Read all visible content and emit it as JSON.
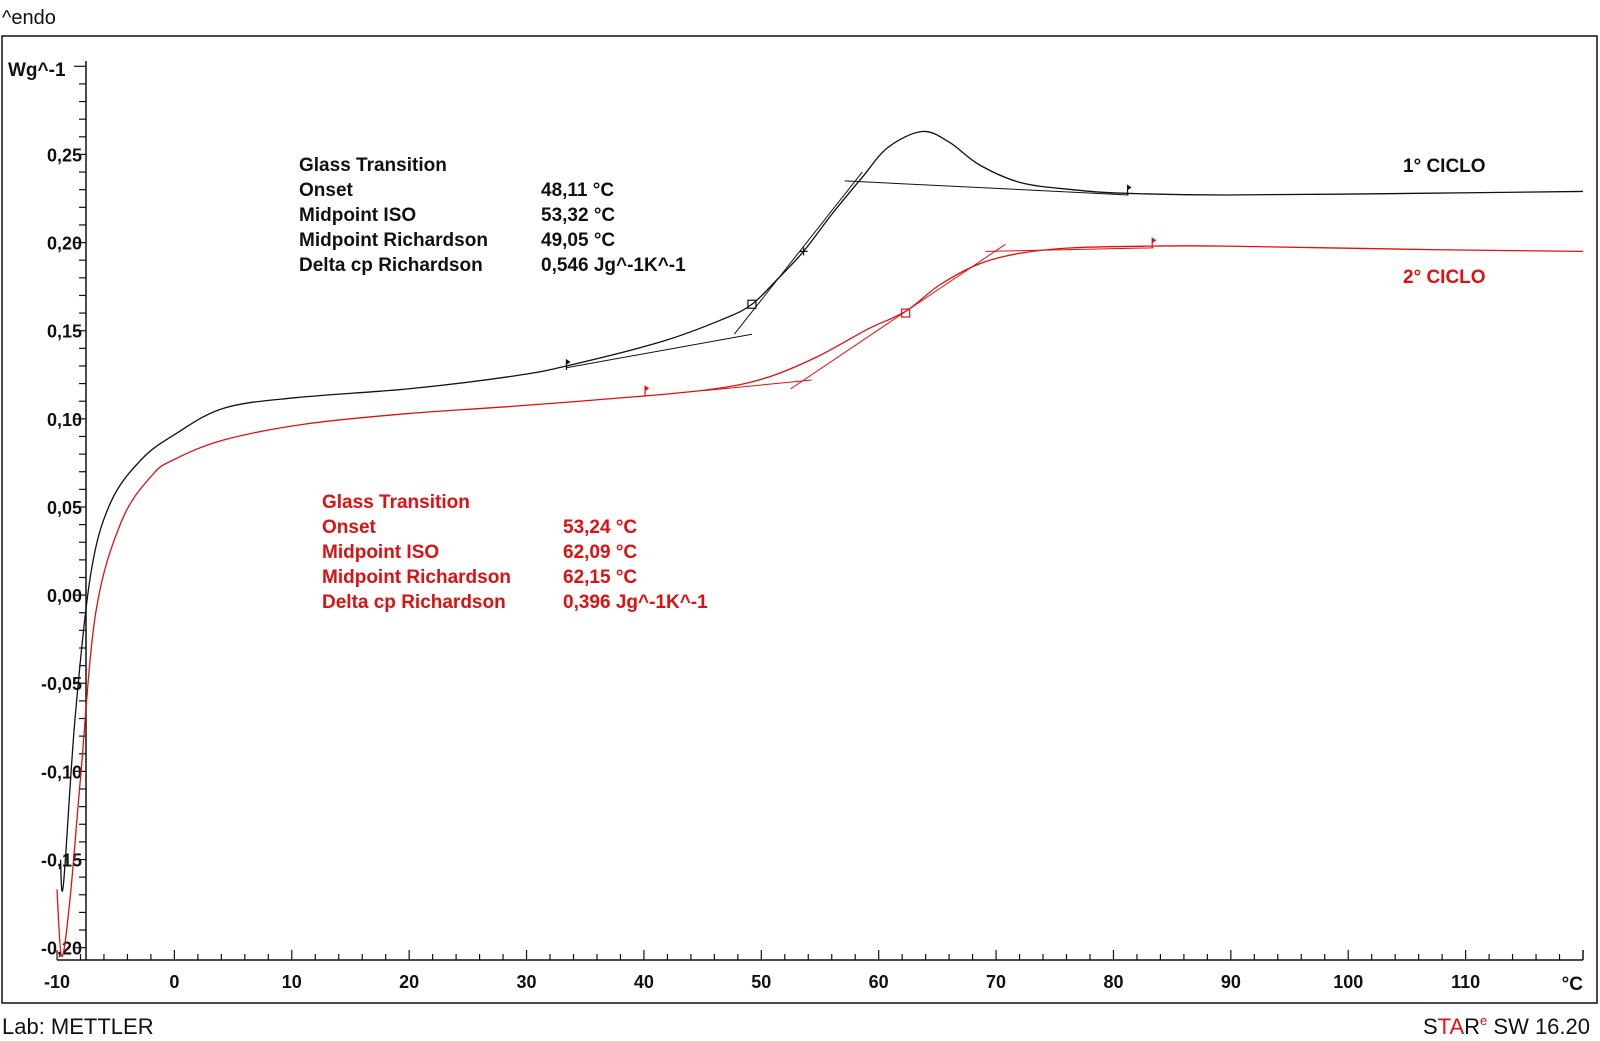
{
  "header": {
    "endo_label": "^endo"
  },
  "footer": {
    "lab": "Lab: METTLER",
    "software_prefix_s": "S",
    "software_ta": "TA",
    "software_r": "R",
    "software_e": "e",
    "software_rest": " SW 16.20"
  },
  "colors": {
    "cycle1": "#111111",
    "cycle2": "#dd1111"
  },
  "chart_data": {
    "type": "line",
    "title": "",
    "xlabel": "°C",
    "ylabel": "Wg^-1",
    "xlim": [
      -10,
      120
    ],
    "ylim": [
      -0.207,
      0.303
    ],
    "x_ticks": [
      -10,
      0,
      10,
      20,
      30,
      40,
      50,
      60,
      70,
      80,
      90,
      100,
      110
    ],
    "x_tick_labels": [
      "-10",
      "0",
      "10",
      "20",
      "30",
      "40",
      "50",
      "60",
      "70",
      "80",
      "90",
      "100",
      "110"
    ],
    "y_ticks": [
      0.25,
      0.2,
      0.15,
      0.1,
      0.05,
      0.0,
      -0.05,
      -0.1,
      -0.15,
      -0.2
    ],
    "y_tick_labels": [
      "0,25",
      "0,20",
      "0,15",
      "0,10",
      "0,05",
      "0,00",
      "-0,05",
      "-0,10",
      "-0,15",
      "-0,20"
    ],
    "grid": false,
    "series": [
      {
        "name": "1° CICLO",
        "color": "#111111",
        "points": [
          [
            -9.7,
            -0.15
          ],
          [
            -9.45,
            -0.164
          ],
          [
            -8.45,
            -0.069
          ],
          [
            -7.1,
            0.013
          ],
          [
            -5.4,
            0.053
          ],
          [
            -2.8,
            0.077
          ],
          [
            0,
            0.091
          ],
          [
            4.2,
            0.106
          ],
          [
            10.3,
            0.112
          ],
          [
            19.9,
            0.117
          ],
          [
            28.6,
            0.124
          ],
          [
            33.4,
            0.13
          ],
          [
            41.6,
            0.144
          ],
          [
            46.9,
            0.157
          ],
          [
            49.2,
            0.165
          ],
          [
            51.2,
            0.178
          ],
          [
            53.6,
            0.195
          ],
          [
            56,
            0.216
          ],
          [
            58.6,
            0.237
          ],
          [
            60.8,
            0.254
          ],
          [
            63.7,
            0.263
          ],
          [
            66,
            0.257
          ],
          [
            68.6,
            0.244
          ],
          [
            72.1,
            0.234
          ],
          [
            76.5,
            0.23
          ],
          [
            80.8,
            0.228
          ],
          [
            89.5,
            0.227
          ],
          [
            107,
            0.228
          ],
          [
            120,
            0.229
          ]
        ],
        "tangents": [
          [
            [
              33.4,
              0.129
            ],
            [
              49.2,
              0.148
            ]
          ],
          [
            [
              47.7,
              0.148
            ],
            [
              58.6,
              0.24
            ]
          ],
          [
            [
              57.1,
              0.235
            ],
            [
              81.3,
              0.227
            ]
          ]
        ],
        "markers": {
          "square": [
            49.2,
            0.165
          ],
          "cross": [
            53.6,
            0.195
          ],
          "flags": [
            [
              33.4,
              0.13
            ],
            [
              81.2,
              0.229
            ]
          ]
        },
        "annotation": {
          "title": "Glass Transition",
          "rows": [
            {
              "label": "Onset",
              "value": "48,11 °C"
            },
            {
              "label": "Midpoint ISO",
              "value": "53,32 °C"
            },
            {
              "label": "Midpoint Richardson",
              "value": "49,05 °C"
            },
            {
              "label": "Delta cp Richardson",
              "value": "0,546 Jg^-1K^-1"
            }
          ]
        }
      },
      {
        "name": "2° CICLO",
        "color": "#dd1111",
        "points": [
          [
            -10,
            -0.167
          ],
          [
            -9.6,
            -0.205
          ],
          [
            -8.9,
            -0.173
          ],
          [
            -8,
            -0.104
          ],
          [
            -6.7,
            -0.01
          ],
          [
            -4.5,
            0.042
          ],
          [
            -1.9,
            0.068
          ],
          [
            0,
            0.077
          ],
          [
            4.2,
            0.088
          ],
          [
            11.1,
            0.097
          ],
          [
            19.9,
            0.103
          ],
          [
            28.6,
            0.107
          ],
          [
            40.1,
            0.113
          ],
          [
            46,
            0.117
          ],
          [
            50.3,
            0.123
          ],
          [
            54.7,
            0.135
          ],
          [
            59.1,
            0.151
          ],
          [
            62.3,
            0.161
          ],
          [
            65.2,
            0.176
          ],
          [
            68.6,
            0.188
          ],
          [
            72.1,
            0.194
          ],
          [
            76.5,
            0.197
          ],
          [
            83.4,
            0.198
          ],
          [
            89.5,
            0.198
          ],
          [
            107,
            0.196
          ],
          [
            120,
            0.195
          ]
        ],
        "tangents": [
          [
            [
              45.1,
              0.116
            ],
            [
              54.3,
              0.122
            ]
          ],
          [
            [
              52.5,
              0.117
            ],
            [
              70.8,
              0.199
            ]
          ],
          [
            [
              69.1,
              0.195
            ],
            [
              83.4,
              0.197
            ]
          ]
        ],
        "markers": {
          "square": [
            62.3,
            0.16
          ],
          "flags": [
            [
              40.1,
              0.115
            ],
            [
              83.3,
              0.199
            ]
          ]
        },
        "annotation": {
          "title": "Glass Transition",
          "rows": [
            {
              "label": "Onset",
              "value": "53,24 °C"
            },
            {
              "label": "Midpoint ISO",
              "value": "62,09 °C"
            },
            {
              "label": "Midpoint Richardson",
              "value": "62,15 °C"
            },
            {
              "label": "Delta cp Richardson",
              "value": "0,396 Jg^-1K^-1"
            }
          ]
        }
      }
    ]
  }
}
